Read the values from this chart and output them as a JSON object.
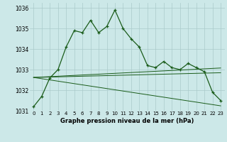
{
  "main_line": [
    1031.2,
    1031.7,
    1032.6,
    1033.0,
    1034.1,
    1034.9,
    1034.8,
    1035.4,
    1034.8,
    1035.1,
    1035.9,
    1035.0,
    1034.5,
    1034.1,
    1033.2,
    1033.1,
    1033.4,
    1033.1,
    1033.0,
    1033.3,
    1033.1,
    1032.9,
    1031.9,
    1031.5
  ],
  "trend_line1": [
    1032.62,
    1032.64,
    1032.66,
    1032.68,
    1032.7,
    1032.72,
    1032.74,
    1032.76,
    1032.78,
    1032.8,
    1032.82,
    1032.84,
    1032.86,
    1032.88,
    1032.9,
    1032.92,
    1032.94,
    1032.96,
    1032.98,
    1033.0,
    1033.02,
    1033.04,
    1033.06,
    1033.08
  ],
  "trend_line2": [
    1032.62,
    1032.63,
    1032.64,
    1032.65,
    1032.66,
    1032.67,
    1032.68,
    1032.69,
    1032.7,
    1032.71,
    1032.72,
    1032.73,
    1032.74,
    1032.75,
    1032.76,
    1032.77,
    1032.78,
    1032.79,
    1032.8,
    1032.81,
    1032.82,
    1032.83,
    1032.84,
    1032.85
  ],
  "trend_line3": [
    1032.62,
    1032.56,
    1032.5,
    1032.44,
    1032.38,
    1032.32,
    1032.26,
    1032.2,
    1032.14,
    1032.08,
    1032.02,
    1031.96,
    1031.9,
    1031.84,
    1031.78,
    1031.72,
    1031.66,
    1031.6,
    1031.54,
    1031.48,
    1031.42,
    1031.36,
    1031.3,
    1031.24
  ],
  "x": [
    0,
    1,
    2,
    3,
    4,
    5,
    6,
    7,
    8,
    9,
    10,
    11,
    12,
    13,
    14,
    15,
    16,
    17,
    18,
    19,
    20,
    21,
    22,
    23
  ],
  "ylim": [
    1031.0,
    1036.25
  ],
  "yticks": [
    1031,
    1032,
    1033,
    1034,
    1035,
    1036
  ],
  "xtick_labels": [
    "0",
    "1",
    "2",
    "3",
    "4",
    "5",
    "6",
    "7",
    "8",
    "9",
    "10",
    "11",
    "12",
    "13",
    "14",
    "15",
    "16",
    "17",
    "18",
    "19",
    "20",
    "21",
    "22",
    "23"
  ],
  "xlabel": "Graphe pression niveau de la mer (hPa)",
  "line_color": "#1a5c1a",
  "bg_color": "#cce8e8",
  "grid_color": "#aacaca"
}
